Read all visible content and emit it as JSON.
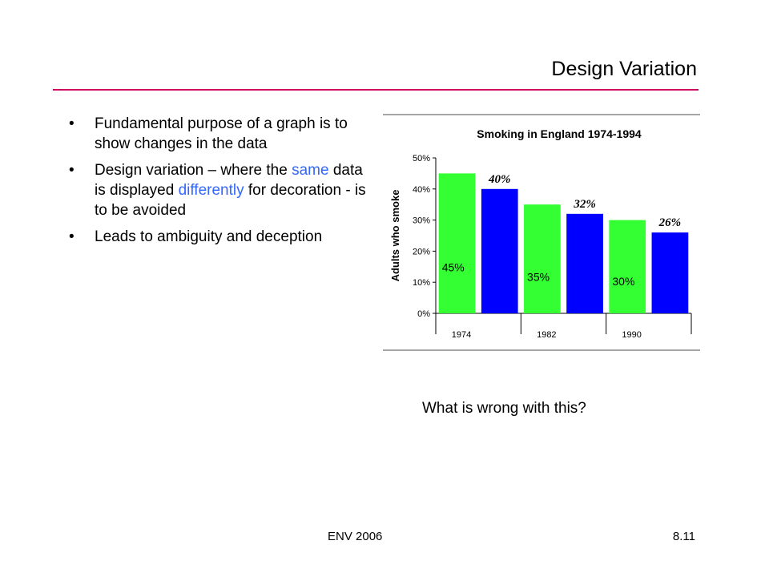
{
  "slide": {
    "title": "Design Variation",
    "bullets": [
      {
        "parts": [
          {
            "text": "Fundamental purpose of a graph is to show changes in the data",
            "hl": false
          }
        ]
      },
      {
        "parts": [
          {
            "text": "Design variation – where the ",
            "hl": false
          },
          {
            "text": "same",
            "hl": true
          },
          {
            "text": " data is displayed ",
            "hl": false
          },
          {
            "text": "differently",
            "hl": true
          },
          {
            "text": " for decoration - is to be avoided",
            "hl": false
          }
        ]
      },
      {
        "parts": [
          {
            "text": "Leads to ambiguity and deception",
            "hl": false
          }
        ]
      }
    ],
    "bullet_glyph": "•",
    "question": "What is wrong with this?",
    "footer_left": "ENV 2006",
    "footer_right": "8.11",
    "colors": {
      "rule": "#cc0066",
      "highlight": "#3366ff"
    }
  },
  "chart_data": {
    "type": "bar",
    "title": "Smoking in England 1974-1994",
    "ylabel": "Adults who smoke",
    "xlabel": "",
    "ylim": [
      0,
      50
    ],
    "yticks": [
      "0%",
      "10%",
      "20%",
      "30%",
      "40%",
      "50%"
    ],
    "categories": [
      "1974",
      "1982",
      "1990"
    ],
    "bars": [
      {
        "value": 45,
        "color": "#33ff33",
        "label": "45%",
        "label_style": "inside"
      },
      {
        "value": 40,
        "color": "#0000ff",
        "label": "40%",
        "label_style": "top"
      },
      {
        "value": 35,
        "color": "#33ff33",
        "label": "35%",
        "label_style": "inside"
      },
      {
        "value": 32,
        "color": "#0000ff",
        "label": "32%",
        "label_style": "top"
      },
      {
        "value": 30,
        "color": "#33ff33",
        "label": "30%",
        "label_style": "inside"
      },
      {
        "value": 26,
        "color": "#0000ff",
        "label": "26%",
        "label_style": "top"
      }
    ],
    "grid": false
  }
}
